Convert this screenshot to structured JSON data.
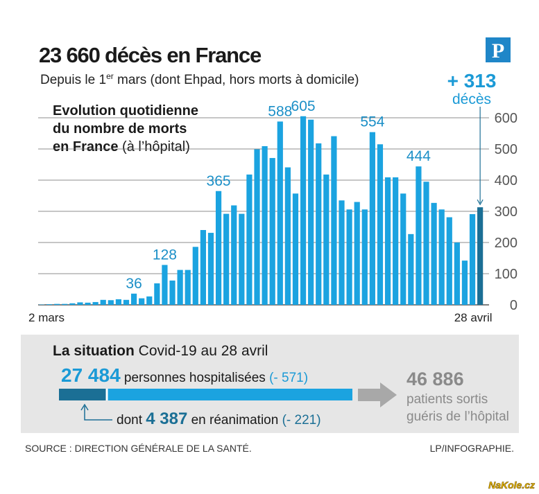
{
  "header": {
    "title": "23 660 décès en France",
    "subtitle": [
      "Depuis le 1",
      "er",
      " mars (dont Ehpad, hors morts à domicile)"
    ],
    "logo": "P"
  },
  "chart_data": {
    "type": "bar",
    "caption_lines": [
      "Evolution quotidienne",
      "du nombre de morts"
    ],
    "caption_bold": "en France",
    "caption_rest": " (à l’hôpital)",
    "categories": [
      "2 mars",
      null,
      null,
      null,
      null,
      null,
      null,
      null,
      null,
      null,
      null,
      null,
      null,
      null,
      null,
      null,
      null,
      null,
      null,
      null,
      null,
      null,
      null,
      null,
      null,
      null,
      null,
      null,
      null,
      null,
      null,
      null,
      null,
      null,
      null,
      null,
      null,
      null,
      null,
      null,
      null,
      null,
      null,
      null,
      null,
      null,
      null,
      null,
      null,
      null,
      null,
      null,
      null,
      null,
      null,
      null,
      null,
      "28 avril"
    ],
    "values": [
      1,
      2,
      3,
      3,
      5,
      8,
      7,
      9,
      16,
      15,
      18,
      16,
      36,
      21,
      27,
      69,
      128,
      78,
      112,
      112,
      186,
      240,
      231,
      365,
      292,
      319,
      292,
      418,
      499,
      509,
      471,
      588,
      441,
      357,
      605,
      594,
      518,
      418,
      541,
      335,
      306,
      330,
      306,
      554,
      515,
      409,
      409,
      357,
      227,
      444,
      395,
      327,
      306,
      281,
      200,
      142,
      291,
      313
    ],
    "value_labels": [
      null,
      null,
      null,
      null,
      null,
      null,
      null,
      null,
      null,
      null,
      null,
      null,
      "36",
      null,
      null,
      null,
      "128",
      null,
      null,
      null,
      null,
      null,
      null,
      "365",
      null,
      null,
      null,
      null,
      null,
      null,
      null,
      "588",
      null,
      null,
      "605",
      null,
      null,
      null,
      null,
      null,
      null,
      null,
      null,
      "554",
      null,
      null,
      null,
      null,
      null,
      "444",
      null,
      null,
      null,
      null,
      null,
      null,
      null,
      "+ 313"
    ],
    "last_unit": "décès",
    "color": "#1ba3e0",
    "last_color": "#1b6f95",
    "ylim": [
      0,
      650
    ],
    "yticks": [
      0,
      100,
      200,
      300,
      400,
      500,
      600
    ],
    "grid": true
  },
  "situation": {
    "title_bold": "La situation",
    "title_rest": " Covid-19 au 28 avril",
    "hospitalised": {
      "value": 27484,
      "label": "27 484",
      "text": " personnes hospitalisées ",
      "change": "(- 571)"
    },
    "icu": {
      "value": 4387,
      "label": "4 387",
      "prefix": "dont ",
      "text": " en réanimation ",
      "change": "(- 221)"
    },
    "recovered": {
      "label": "46 886",
      "lines": [
        "patients sortis",
        "guéris de l’hôpital"
      ]
    }
  },
  "footer": {
    "source": "SOURCE : DIRECTION GÉNÉRALE DE LA SANTÉ.",
    "credit": "LP/INFOGRAPHIE.",
    "watermark": "NaKole.cz"
  }
}
